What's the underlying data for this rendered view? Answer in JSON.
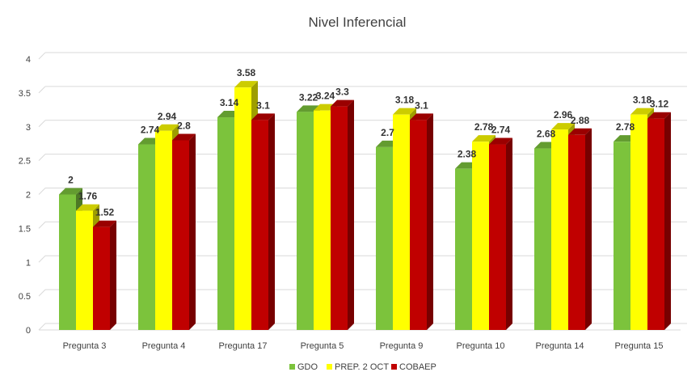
{
  "chart_data": {
    "type": "bar",
    "title": "Nivel Inferencial",
    "categories": [
      "Pregunta 3",
      "Pregunta 4",
      "Pregunta 17",
      "Pregunta 5",
      "Pregunta 9",
      "Pregunta 10",
      "Pregunta 14",
      "Pregunta 15"
    ],
    "series": [
      {
        "name": "GDO",
        "color": "#7CC33C",
        "values": [
          2,
          2.74,
          3.14,
          3.22,
          2.7,
          2.38,
          2.68,
          2.78
        ]
      },
      {
        "name": "PREP. 2 OCT",
        "color": "#FFFF00",
        "values": [
          1.76,
          2.94,
          3.58,
          3.24,
          3.18,
          2.78,
          2.96,
          3.18
        ]
      },
      {
        "name": "COBAEP",
        "color": "#C00000",
        "values": [
          1.52,
          2.8,
          3.1,
          3.3,
          3.1,
          2.74,
          2.88,
          3.12
        ]
      }
    ],
    "ylim": [
      0,
      4
    ],
    "yticks": [
      "0",
      "0.5",
      "1",
      "1.5",
      "2",
      "2.5",
      "3",
      "3.5",
      "4"
    ],
    "ytick_values": [
      0,
      0.5,
      1,
      1.5,
      2,
      2.5,
      3,
      3.5,
      4
    ],
    "grid": true,
    "legend": "bottom"
  }
}
